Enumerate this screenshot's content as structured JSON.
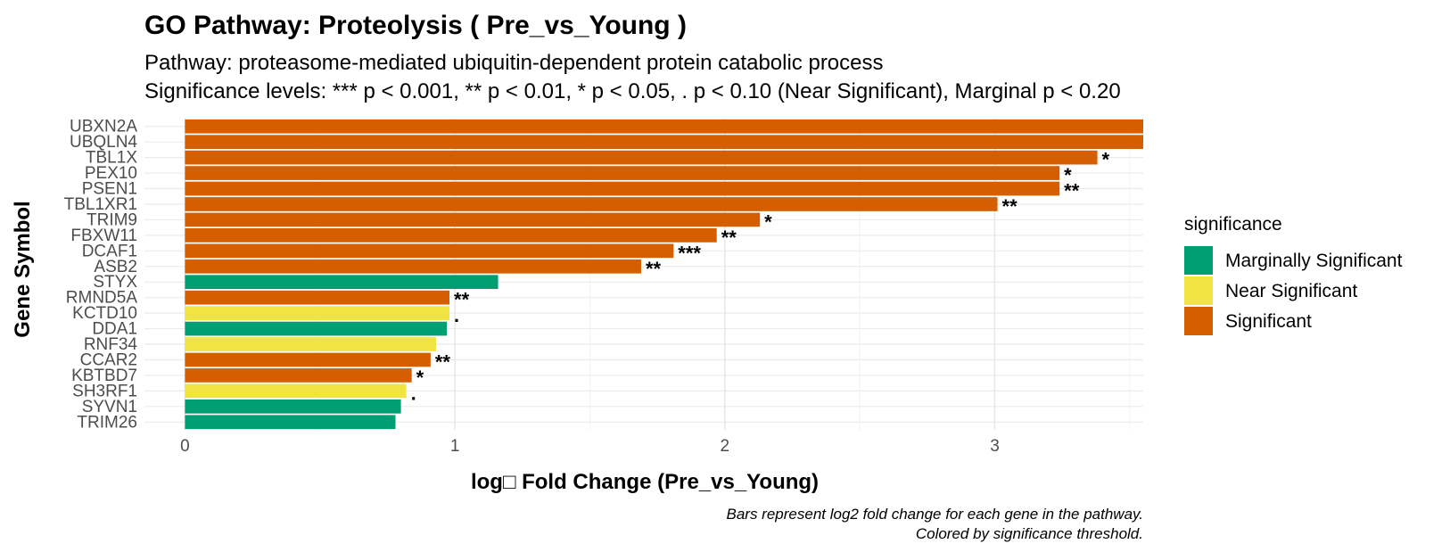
{
  "chart_data": {
    "type": "bar",
    "orientation": "horizontal",
    "title": "GO Pathway: Proteolysis ( Pre_vs_Young )",
    "subtitle_line1": "Pathway: proteasome-mediated ubiquitin-dependent protein catabolic process",
    "subtitle_line2": "Significance levels: *** p < 0.001, ** p < 0.01, * p < 0.05, . p < 0.10 (Near Significant), Marginal p < 0.20",
    "xlabel": "log□ Fold Change (Pre_vs_Young)",
    "ylabel": "Gene Symbol",
    "caption_line1": "Bars represent log2 fold change for each gene in the pathway.",
    "caption_line2": "Colored by significance threshold.",
    "xlim": [
      -0.15,
      3.55
    ],
    "x_ticks": [
      0,
      1,
      2,
      3
    ],
    "grid": true,
    "legend": {
      "title": "significance",
      "placement": "right",
      "entries": [
        {
          "label": "Marginally Significant",
          "color": "#009E73"
        },
        {
          "label": "Near Significant",
          "color": "#F0E442"
        },
        {
          "label": "Significant",
          "color": "#D55E00"
        }
      ]
    },
    "genes": [
      {
        "gene": "UBXN2A",
        "value": 3.55,
        "category": "Significant",
        "label": ""
      },
      {
        "gene": "UBQLN4",
        "value": 3.55,
        "category": "Significant",
        "label": ""
      },
      {
        "gene": "TBL1X",
        "value": 3.38,
        "category": "Significant",
        "label": "*"
      },
      {
        "gene": "PEX10",
        "value": 3.24,
        "category": "Significant",
        "label": "*"
      },
      {
        "gene": "PSEN1",
        "value": 3.24,
        "category": "Significant",
        "label": "**"
      },
      {
        "gene": "TBL1XR1",
        "value": 3.01,
        "category": "Significant",
        "label": "**"
      },
      {
        "gene": "TRIM9",
        "value": 2.13,
        "category": "Significant",
        "label": "*"
      },
      {
        "gene": "FBXW11",
        "value": 1.97,
        "category": "Significant",
        "label": "**"
      },
      {
        "gene": "DCAF1",
        "value": 1.81,
        "category": "Significant",
        "label": "***"
      },
      {
        "gene": "ASB2",
        "value": 1.69,
        "category": "Significant",
        "label": "**"
      },
      {
        "gene": "STYX",
        "value": 1.16,
        "category": "Marginally Significant",
        "label": ""
      },
      {
        "gene": "RMND5A",
        "value": 0.98,
        "category": "Significant",
        "label": "**"
      },
      {
        "gene": "KCTD10",
        "value": 0.98,
        "category": "Near Significant",
        "label": "."
      },
      {
        "gene": "DDA1",
        "value": 0.97,
        "category": "Marginally Significant",
        "label": ""
      },
      {
        "gene": "RNF34",
        "value": 0.93,
        "category": "Near Significant",
        "label": ""
      },
      {
        "gene": "CCAR2",
        "value": 0.91,
        "category": "Significant",
        "label": "**"
      },
      {
        "gene": "KBTBD7",
        "value": 0.84,
        "category": "Significant",
        "label": "*"
      },
      {
        "gene": "SH3RF1",
        "value": 0.82,
        "category": "Near Significant",
        "label": "."
      },
      {
        "gene": "SYVN1",
        "value": 0.8,
        "category": "Marginally Significant",
        "label": ""
      },
      {
        "gene": "TRIM26",
        "value": 0.78,
        "category": "Marginally Significant",
        "label": ""
      }
    ]
  }
}
